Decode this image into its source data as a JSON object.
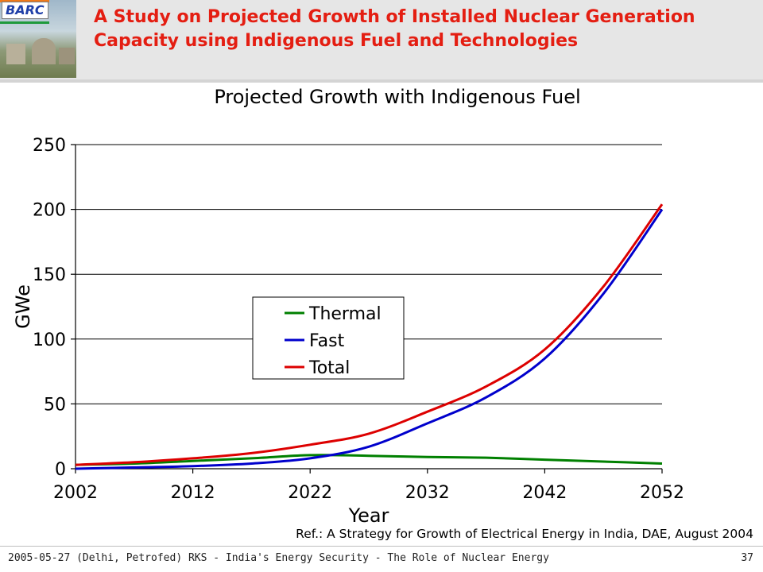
{
  "header": {
    "logo_text": "BARC",
    "title": "A Study on Projected Growth of Installed Nuclear Generation Capacity using Indigenous Fuel and Technologies",
    "logo_colors": [
      "#f07a1a",
      "#ffffff",
      "#1e9a3c"
    ],
    "title_color": "#e41e12"
  },
  "chart_data": {
    "type": "line",
    "title": "Projected Growth with Indigenous Fuel",
    "xlabel": "Year",
    "ylabel": "GWe",
    "xlim": [
      2002,
      2052
    ],
    "ylim": [
      0,
      250
    ],
    "x_ticks": [
      2002,
      2012,
      2022,
      2032,
      2042,
      2052
    ],
    "y_ticks": [
      0,
      50,
      100,
      150,
      200,
      250
    ],
    "grid": "horizontal",
    "legend_position": "center-left",
    "series": [
      {
        "name": "Thermal",
        "color": "#008000",
        "x": [
          2002,
          2007,
          2012,
          2017,
          2022,
          2027,
          2032,
          2037,
          2042,
          2047,
          2052
        ],
        "y": [
          3,
          4,
          6,
          8,
          10.5,
          10,
          9,
          8.5,
          7,
          5.5,
          4
        ]
      },
      {
        "name": "Fast",
        "color": "#0000cc",
        "x": [
          2002,
          2007,
          2012,
          2017,
          2022,
          2027,
          2032,
          2037,
          2042,
          2047,
          2052
        ],
        "y": [
          0,
          1,
          2,
          4,
          8,
          17,
          35,
          55,
          85,
          135,
          200
        ]
      },
      {
        "name": "Total",
        "color": "#dd0000",
        "x": [
          2002,
          2007,
          2012,
          2017,
          2022,
          2027,
          2032,
          2037,
          2042,
          2047,
          2052
        ],
        "y": [
          3,
          5,
          8,
          12,
          18.5,
          27,
          44,
          63.5,
          92,
          140.5,
          204
        ]
      }
    ]
  },
  "reference": "Ref.: A Strategy for Growth of Electrical Energy in India, DAE, August 2004",
  "footer": {
    "text": "2005-05-27 (Delhi, Petrofed) RKS - India's Energy Security - The Role of Nuclear Energy",
    "page_number": "37"
  }
}
